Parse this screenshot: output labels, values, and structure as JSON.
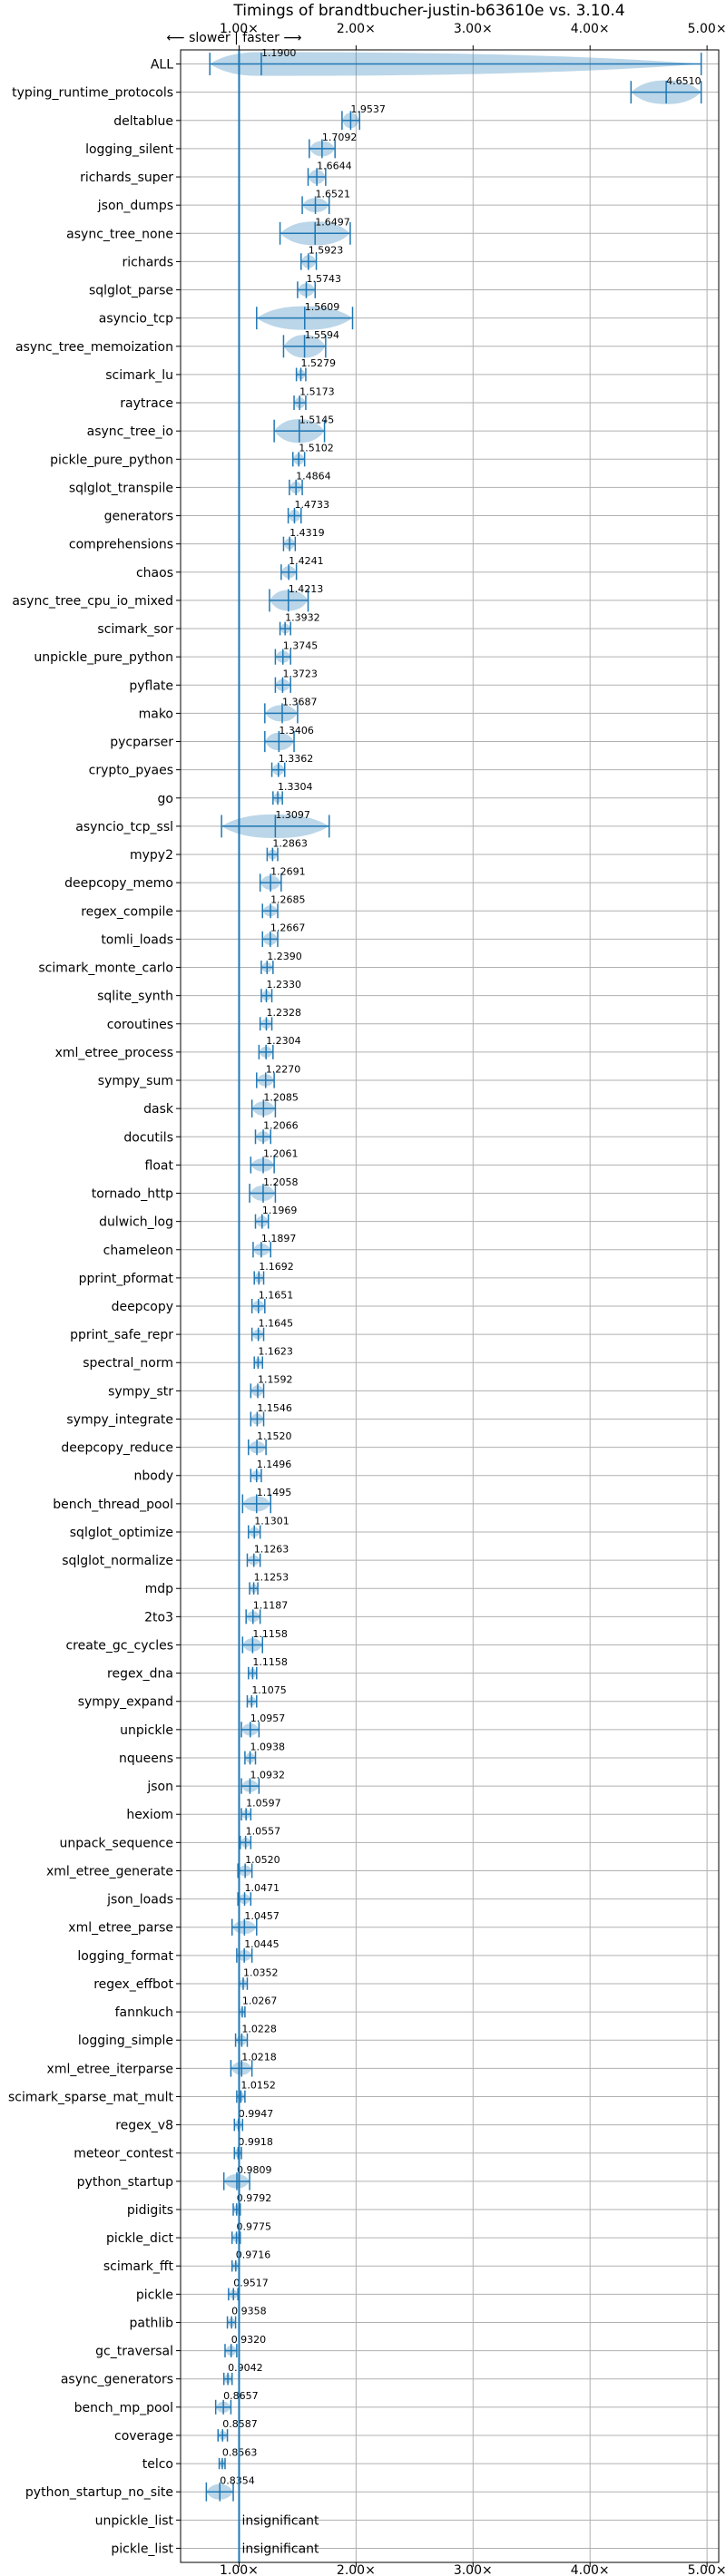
{
  "chart_data": {
    "type": "violin",
    "title": "Timings of brandtbucher-justin-b63610e vs. 3.10.4",
    "direction_label": "⟵ slower | faster ⟶",
    "xlim": [
      0.5,
      5.1
    ],
    "xticks": [
      1,
      2,
      3,
      4,
      5
    ],
    "xtick_labels": [
      "1.00×",
      "2.00×",
      "3.00×",
      "4.00×",
      "5.00×"
    ],
    "reference_line": 1.0,
    "grid": true,
    "insignificant_label": "insignificant",
    "benchmarks": [
      {
        "name": "ALL",
        "label": "1.1900",
        "value": 1.19,
        "lo": 0.75,
        "hi": 4.95,
        "spread": 0.25
      },
      {
        "name": "typing_runtime_protocols",
        "label": "4.6510",
        "value": 4.651,
        "lo": 4.35,
        "hi": 4.95,
        "spread": 0.25
      },
      {
        "name": "deltablue",
        "label": "1.9537",
        "value": 1.9537,
        "lo": 1.88,
        "hi": 2.03,
        "spread": 0.09
      },
      {
        "name": "logging_silent",
        "label": "1.7092",
        "value": 1.7092,
        "lo": 1.6,
        "hi": 1.82,
        "spread": 0.09
      },
      {
        "name": "richards_super",
        "label": "1.6644",
        "value": 1.6644,
        "lo": 1.59,
        "hi": 1.74,
        "spread": 0.08
      },
      {
        "name": "json_dumps",
        "label": "1.6521",
        "value": 1.6521,
        "lo": 1.54,
        "hi": 1.77,
        "spread": 0.08
      },
      {
        "name": "async_tree_none",
        "label": "1.6497",
        "value": 1.6497,
        "lo": 1.35,
        "hi": 1.95,
        "spread": 0.3
      },
      {
        "name": "richards",
        "label": "1.5923",
        "value": 1.5923,
        "lo": 1.53,
        "hi": 1.66,
        "spread": 0.07
      },
      {
        "name": "sqlglot_parse",
        "label": "1.5743",
        "value": 1.5743,
        "lo": 1.5,
        "hi": 1.65,
        "spread": 0.07
      },
      {
        "name": "asyncio_tcp",
        "label": "1.5609",
        "value": 1.5609,
        "lo": 1.15,
        "hi": 1.97,
        "spread": 0.35
      },
      {
        "name": "async_tree_memoization",
        "label": "1.5594",
        "value": 1.5594,
        "lo": 1.38,
        "hi": 1.74,
        "spread": 0.16
      },
      {
        "name": "scimark_lu",
        "label": "1.5279",
        "value": 1.5279,
        "lo": 1.49,
        "hi": 1.57,
        "spread": 0.04
      },
      {
        "name": "raytrace",
        "label": "1.5173",
        "value": 1.5173,
        "lo": 1.47,
        "hi": 1.57,
        "spread": 0.05
      },
      {
        "name": "async_tree_io",
        "label": "1.5145",
        "value": 1.5145,
        "lo": 1.3,
        "hi": 1.73,
        "spread": 0.2
      },
      {
        "name": "pickle_pure_python",
        "label": "1.5102",
        "value": 1.5102,
        "lo": 1.46,
        "hi": 1.56,
        "spread": 0.05
      },
      {
        "name": "sqlglot_transpile",
        "label": "1.4864",
        "value": 1.4864,
        "lo": 1.43,
        "hi": 1.54,
        "spread": 0.06
      },
      {
        "name": "generators",
        "label": "1.4733",
        "value": 1.4733,
        "lo": 1.42,
        "hi": 1.53,
        "spread": 0.06
      },
      {
        "name": "comprehensions",
        "label": "1.4319",
        "value": 1.4319,
        "lo": 1.38,
        "hi": 1.48,
        "spread": 0.05
      },
      {
        "name": "chaos",
        "label": "1.4241",
        "value": 1.4241,
        "lo": 1.36,
        "hi": 1.49,
        "spread": 0.06
      },
      {
        "name": "async_tree_cpu_io_mixed",
        "label": "1.4213",
        "value": 1.4213,
        "lo": 1.26,
        "hi": 1.59,
        "spread": 0.14
      },
      {
        "name": "scimark_sor",
        "label": "1.3932",
        "value": 1.3932,
        "lo": 1.35,
        "hi": 1.44,
        "spread": 0.04
      },
      {
        "name": "unpickle_pure_python",
        "label": "1.3745",
        "value": 1.3745,
        "lo": 1.31,
        "hi": 1.44,
        "spread": 0.06
      },
      {
        "name": "pyflate",
        "label": "1.3723",
        "value": 1.3723,
        "lo": 1.31,
        "hi": 1.44,
        "spread": 0.06
      },
      {
        "name": "mako",
        "label": "1.3687",
        "value": 1.3687,
        "lo": 1.22,
        "hi": 1.5,
        "spread": 0.1
      },
      {
        "name": "pycparser",
        "label": "1.3406",
        "value": 1.3406,
        "lo": 1.22,
        "hi": 1.47,
        "spread": 0.11
      },
      {
        "name": "crypto_pyaes",
        "label": "1.3362",
        "value": 1.3362,
        "lo": 1.28,
        "hi": 1.39,
        "spread": 0.05
      },
      {
        "name": "go",
        "label": "1.3304",
        "value": 1.3304,
        "lo": 1.29,
        "hi": 1.37,
        "spread": 0.04
      },
      {
        "name": "asyncio_tcp_ssl",
        "label": "1.3097",
        "value": 1.3097,
        "lo": 0.85,
        "hi": 1.77,
        "spread": 0.45
      },
      {
        "name": "mypy2",
        "label": "1.2863",
        "value": 1.2863,
        "lo": 1.24,
        "hi": 1.33,
        "spread": 0.04
      },
      {
        "name": "deepcopy_memo",
        "label": "1.2691",
        "value": 1.2691,
        "lo": 1.18,
        "hi": 1.36,
        "spread": 0.08
      },
      {
        "name": "regex_compile",
        "label": "1.2685",
        "value": 1.2685,
        "lo": 1.2,
        "hi": 1.33,
        "spread": 0.05
      },
      {
        "name": "tomli_loads",
        "label": "1.2667",
        "value": 1.2667,
        "lo": 1.2,
        "hi": 1.33,
        "spread": 0.06
      },
      {
        "name": "scimark_monte_carlo",
        "label": "1.2390",
        "value": 1.239,
        "lo": 1.19,
        "hi": 1.29,
        "spread": 0.04
      },
      {
        "name": "sqlite_synth",
        "label": "1.2330",
        "value": 1.233,
        "lo": 1.19,
        "hi": 1.28,
        "spread": 0.04
      },
      {
        "name": "coroutines",
        "label": "1.2328",
        "value": 1.2328,
        "lo": 1.18,
        "hi": 1.28,
        "spread": 0.04
      },
      {
        "name": "xml_etree_process",
        "label": "1.2304",
        "value": 1.2304,
        "lo": 1.17,
        "hi": 1.29,
        "spread": 0.05
      },
      {
        "name": "sympy_sum",
        "label": "1.2270",
        "value": 1.227,
        "lo": 1.15,
        "hi": 1.3,
        "spread": 0.06
      },
      {
        "name": "dask",
        "label": "1.2085",
        "value": 1.2085,
        "lo": 1.11,
        "hi": 1.31,
        "spread": 0.08
      },
      {
        "name": "docutils",
        "label": "1.2066",
        "value": 1.2066,
        "lo": 1.14,
        "hi": 1.27,
        "spread": 0.05
      },
      {
        "name": "float",
        "label": "1.2061",
        "value": 1.2061,
        "lo": 1.1,
        "hi": 1.3,
        "spread": 0.07
      },
      {
        "name": "tornado_http",
        "label": "1.2058",
        "value": 1.2058,
        "lo": 1.09,
        "hi": 1.31,
        "spread": 0.09
      },
      {
        "name": "dulwich_log",
        "label": "1.1969",
        "value": 1.1969,
        "lo": 1.14,
        "hi": 1.25,
        "spread": 0.05
      },
      {
        "name": "chameleon",
        "label": "1.1897",
        "value": 1.1897,
        "lo": 1.12,
        "hi": 1.27,
        "spread": 0.06
      },
      {
        "name": "pprint_pformat",
        "label": "1.1692",
        "value": 1.1692,
        "lo": 1.13,
        "hi": 1.21,
        "spread": 0.04
      },
      {
        "name": "deepcopy",
        "label": "1.1651",
        "value": 1.1651,
        "lo": 1.11,
        "hi": 1.22,
        "spread": 0.05
      },
      {
        "name": "pprint_safe_repr",
        "label": "1.1645",
        "value": 1.1645,
        "lo": 1.11,
        "hi": 1.21,
        "spread": 0.04
      },
      {
        "name": "spectral_norm",
        "label": "1.1623",
        "value": 1.1623,
        "lo": 1.13,
        "hi": 1.2,
        "spread": 0.03
      },
      {
        "name": "sympy_str",
        "label": "1.1592",
        "value": 1.1592,
        "lo": 1.1,
        "hi": 1.21,
        "spread": 0.05
      },
      {
        "name": "sympy_integrate",
        "label": "1.1546",
        "value": 1.1546,
        "lo": 1.1,
        "hi": 1.21,
        "spread": 0.05
      },
      {
        "name": "deepcopy_reduce",
        "label": "1.1520",
        "value": 1.152,
        "lo": 1.08,
        "hi": 1.23,
        "spread": 0.06
      },
      {
        "name": "nbody",
        "label": "1.1496",
        "value": 1.1496,
        "lo": 1.1,
        "hi": 1.19,
        "spread": 0.04
      },
      {
        "name": "bench_thread_pool",
        "label": "1.1495",
        "value": 1.1495,
        "lo": 1.03,
        "hi": 1.27,
        "spread": 0.09
      },
      {
        "name": "sqlglot_optimize",
        "label": "1.1301",
        "value": 1.1301,
        "lo": 1.08,
        "hi": 1.18,
        "spread": 0.04
      },
      {
        "name": "sqlglot_normalize",
        "label": "1.1263",
        "value": 1.1263,
        "lo": 1.07,
        "hi": 1.18,
        "spread": 0.04
      },
      {
        "name": "mdp",
        "label": "1.1253",
        "value": 1.1253,
        "lo": 1.09,
        "hi": 1.16,
        "spread": 0.03
      },
      {
        "name": "2to3",
        "label": "1.1187",
        "value": 1.1187,
        "lo": 1.06,
        "hi": 1.18,
        "spread": 0.05
      },
      {
        "name": "create_gc_cycles",
        "label": "1.1158",
        "value": 1.1158,
        "lo": 1.03,
        "hi": 1.2,
        "spread": 0.07
      },
      {
        "name": "regex_dna",
        "label": "1.1158",
        "value": 1.1158,
        "lo": 1.08,
        "hi": 1.15,
        "spread": 0.03
      },
      {
        "name": "sympy_expand",
        "label": "1.1075",
        "value": 1.1075,
        "lo": 1.07,
        "hi": 1.15,
        "spread": 0.03
      },
      {
        "name": "unpickle",
        "label": "1.0957",
        "value": 1.0957,
        "lo": 1.02,
        "hi": 1.17,
        "spread": 0.06
      },
      {
        "name": "nqueens",
        "label": "1.0938",
        "value": 1.0938,
        "lo": 1.05,
        "hi": 1.14,
        "spread": 0.04
      },
      {
        "name": "json",
        "label": "1.0932",
        "value": 1.0932,
        "lo": 1.02,
        "hi": 1.17,
        "spread": 0.06
      },
      {
        "name": "hexiom",
        "label": "1.0597",
        "value": 1.0597,
        "lo": 1.02,
        "hi": 1.1,
        "spread": 0.03
      },
      {
        "name": "unpack_sequence",
        "label": "1.0557",
        "value": 1.0557,
        "lo": 1.01,
        "hi": 1.1,
        "spread": 0.04
      },
      {
        "name": "xml_etree_generate",
        "label": "1.0520",
        "value": 1.052,
        "lo": 0.99,
        "hi": 1.11,
        "spread": 0.05
      },
      {
        "name": "json_loads",
        "label": "1.0471",
        "value": 1.0471,
        "lo": 0.99,
        "hi": 1.1,
        "spread": 0.04
      },
      {
        "name": "xml_etree_parse",
        "label": "1.0457",
        "value": 1.0457,
        "lo": 0.94,
        "hi": 1.15,
        "spread": 0.07
      },
      {
        "name": "logging_format",
        "label": "1.0445",
        "value": 1.0445,
        "lo": 0.98,
        "hi": 1.11,
        "spread": 0.05
      },
      {
        "name": "regex_effbot",
        "label": "1.0352",
        "value": 1.0352,
        "lo": 1.0,
        "hi": 1.07,
        "spread": 0.03
      },
      {
        "name": "fannkuch",
        "label": "1.0267",
        "value": 1.0267,
        "lo": 1.0,
        "hi": 1.05,
        "spread": 0.02
      },
      {
        "name": "logging_simple",
        "label": "1.0228",
        "value": 1.0228,
        "lo": 0.97,
        "hi": 1.07,
        "spread": 0.04
      },
      {
        "name": "xml_etree_iterparse",
        "label": "1.0218",
        "value": 1.0218,
        "lo": 0.93,
        "hi": 1.11,
        "spread": 0.07
      },
      {
        "name": "scimark_sparse_mat_mult",
        "label": "1.0152",
        "value": 1.0152,
        "lo": 0.98,
        "hi": 1.05,
        "spread": 0.03
      },
      {
        "name": "regex_v8",
        "label": "0.9947",
        "value": 0.9947,
        "lo": 0.96,
        "hi": 1.03,
        "spread": 0.03
      },
      {
        "name": "meteor_contest",
        "label": "0.9918",
        "value": 0.9918,
        "lo": 0.96,
        "hi": 1.02,
        "spread": 0.03
      },
      {
        "name": "python_startup",
        "label": "0.9809",
        "value": 0.9809,
        "lo": 0.87,
        "hi": 1.09,
        "spread": 0.08
      },
      {
        "name": "pidigits",
        "label": "0.9792",
        "value": 0.9792,
        "lo": 0.95,
        "hi": 1.01,
        "spread": 0.03
      },
      {
        "name": "pickle_dict",
        "label": "0.9775",
        "value": 0.9775,
        "lo": 0.94,
        "hi": 1.01,
        "spread": 0.03
      },
      {
        "name": "scimark_fft",
        "label": "0.9716",
        "value": 0.9716,
        "lo": 0.94,
        "hi": 1.0,
        "spread": 0.02
      },
      {
        "name": "pickle",
        "label": "0.9517",
        "value": 0.9517,
        "lo": 0.91,
        "hi": 0.99,
        "spread": 0.03
      },
      {
        "name": "pathlib",
        "label": "0.9358",
        "value": 0.9358,
        "lo": 0.9,
        "hi": 0.97,
        "spread": 0.03
      },
      {
        "name": "gc_traversal",
        "label": "0.9320",
        "value": 0.932,
        "lo": 0.88,
        "hi": 0.98,
        "spread": 0.04
      },
      {
        "name": "async_generators",
        "label": "0.9042",
        "value": 0.9042,
        "lo": 0.87,
        "hi": 0.94,
        "spread": 0.03
      },
      {
        "name": "bench_mp_pool",
        "label": "0.8657",
        "value": 0.8657,
        "lo": 0.8,
        "hi": 0.93,
        "spread": 0.05
      },
      {
        "name": "coverage",
        "label": "0.8587",
        "value": 0.8587,
        "lo": 0.82,
        "hi": 0.9,
        "spread": 0.03
      },
      {
        "name": "telco",
        "label": "0.8563",
        "value": 0.8563,
        "lo": 0.83,
        "hi": 0.88,
        "spread": 0.02
      },
      {
        "name": "python_startup_no_site",
        "label": "0.8354",
        "value": 0.8354,
        "lo": 0.72,
        "hi": 0.95,
        "spread": 0.09
      },
      {
        "name": "unpickle_list",
        "insignificant": true
      },
      {
        "name": "pickle_list",
        "insignificant": true
      }
    ]
  }
}
